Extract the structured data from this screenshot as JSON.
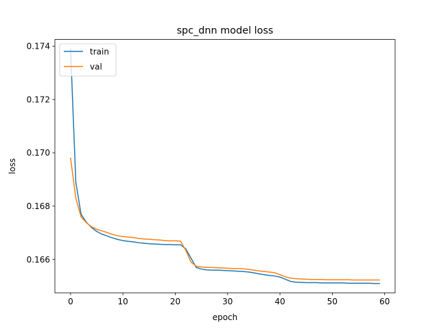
{
  "chart_data": {
    "type": "line",
    "title": "spc_dnn model loss",
    "xlabel": "epoch",
    "ylabel": "loss",
    "xlim": [
      -3,
      62
    ],
    "ylim": [
      0.16475,
      0.17425
    ],
    "xticks": [
      0,
      10,
      20,
      30,
      40,
      50,
      60
    ],
    "yticks": [
      0.166,
      0.168,
      0.17,
      0.172,
      0.174
    ],
    "ytick_labels": [
      "0.166",
      "0.168",
      "0.170",
      "0.172",
      "0.174"
    ],
    "grid": false,
    "legend": "upper-left",
    "x": [
      0,
      1,
      2,
      3,
      4,
      5,
      6,
      7,
      8,
      9,
      10,
      11,
      12,
      13,
      14,
      15,
      16,
      17,
      18,
      19,
      20,
      21,
      22,
      23,
      24,
      25,
      26,
      27,
      28,
      29,
      30,
      31,
      32,
      33,
      34,
      35,
      36,
      37,
      38,
      39,
      40,
      41,
      42,
      43,
      44,
      45,
      46,
      47,
      48,
      49,
      50,
      51,
      52,
      53,
      54,
      55,
      56,
      57,
      58,
      59
    ],
    "series": [
      {
        "name": "train",
        "color": "#1f77b4",
        "values": [
          0.1739,
          0.1689,
          0.1677,
          0.1674,
          0.1672,
          0.16705,
          0.16695,
          0.16688,
          0.16681,
          0.16675,
          0.16671,
          0.16668,
          0.16666,
          0.16663,
          0.16661,
          0.16659,
          0.16658,
          0.16657,
          0.16656,
          0.16656,
          0.16655,
          0.16655,
          0.1664,
          0.16605,
          0.1657,
          0.16564,
          0.16561,
          0.1656,
          0.1656,
          0.16559,
          0.16558,
          0.16557,
          0.16556,
          0.16555,
          0.16553,
          0.1655,
          0.16546,
          0.16543,
          0.1654,
          0.16538,
          0.16534,
          0.16526,
          0.16518,
          0.16515,
          0.16514,
          0.16513,
          0.16513,
          0.16513,
          0.16512,
          0.16512,
          0.16512,
          0.16512,
          0.16512,
          0.16511,
          0.16511,
          0.16511,
          0.16511,
          0.16511,
          0.1651,
          0.1651
        ]
      },
      {
        "name": "val",
        "color": "#ff7f0e",
        "values": [
          0.1698,
          0.1683,
          0.1676,
          0.16738,
          0.16723,
          0.16713,
          0.16707,
          0.16701,
          0.16694,
          0.16689,
          0.16686,
          0.16684,
          0.16682,
          0.16679,
          0.16677,
          0.16676,
          0.16674,
          0.16673,
          0.16671,
          0.1667,
          0.1667,
          0.16669,
          0.16635,
          0.1659,
          0.16575,
          0.16572,
          0.1657,
          0.1657,
          0.16569,
          0.16568,
          0.16567,
          0.16566,
          0.16566,
          0.16565,
          0.16563,
          0.1656,
          0.16557,
          0.16555,
          0.16553,
          0.1655,
          0.16543,
          0.16535,
          0.1653,
          0.16528,
          0.16527,
          0.16526,
          0.16525,
          0.16525,
          0.16525,
          0.16524,
          0.16524,
          0.16524,
          0.16524,
          0.16524,
          0.16523,
          0.16523,
          0.16523,
          0.16523,
          0.16523,
          0.16523
        ]
      }
    ]
  }
}
